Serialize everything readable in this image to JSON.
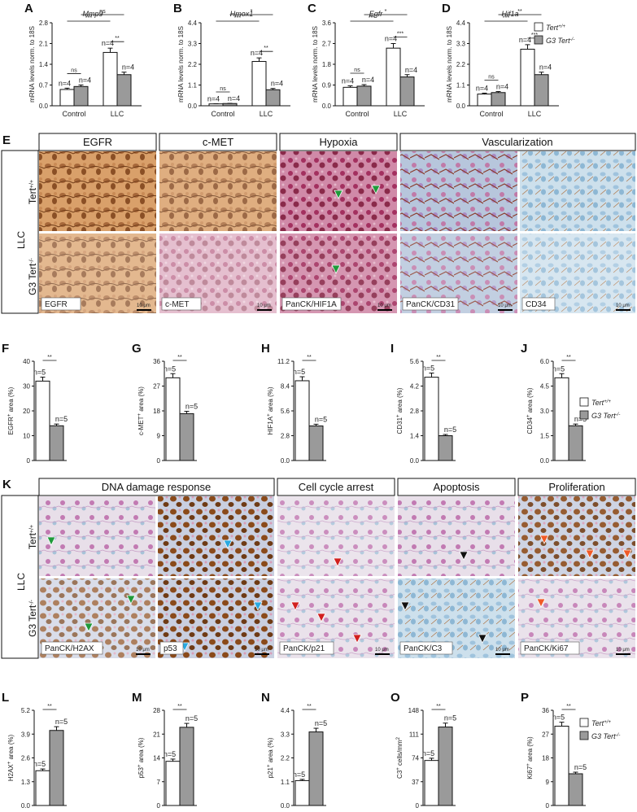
{
  "legend": {
    "wt": "Tert",
    "wt_sup": "+/+",
    "ko": "G3 Tert",
    "ko_sup": "-/-"
  },
  "colors": {
    "wt": "#ffffff",
    "ko": "#9a9a9a",
    "brown": "#9b5a2a",
    "pink": "#b0407a",
    "blue": "#9fbfd6"
  },
  "section_labels": {
    "E": "E",
    "K": "K"
  },
  "row_labels": {
    "llc": "LLC",
    "wt": "Tert",
    "wt_sup": "+/+",
    "ko": "G3 Tert",
    "ko_sup": "-/-"
  },
  "headers_E": [
    "EGFR",
    "c-MET",
    "Hypoxia",
    "Vascularization"
  ],
  "stains_E": [
    "EGFR",
    "c-MET",
    "PanCK/HIF1A",
    "PanCK/CD31",
    "CD34"
  ],
  "headers_K": [
    "DNA damage response",
    "Cell cycle arrest",
    "Apoptosis",
    "Proliferation"
  ],
  "stains_K": [
    "PanCK/H2AX",
    "p53",
    "PanCK/p21",
    "PanCK/C3",
    "PanCK/Ki67"
  ],
  "scalebar": "10 μm",
  "chart_data": [
    {
      "panel": "A",
      "type": "bar",
      "title": "Mmp9",
      "ylabel": "mRNA levels norm. to 18S",
      "categories": [
        "Control",
        "LLC"
      ],
      "ylim": [
        0,
        2.8
      ],
      "yticks": [
        0.0,
        0.7,
        1.4,
        2.1,
        2.8
      ],
      "series": [
        {
          "name": "Tert+/+",
          "values": [
            0.55,
            1.8
          ]
        },
        {
          "name": "G3 Tert-/-",
          "values": [
            0.65,
            1.05
          ]
        }
      ],
      "n_labels": [
        "n=4",
        "n=4",
        "n=4",
        "n=4"
      ],
      "sig": [
        {
          "label": "ns",
          "from": 0,
          "to": 1
        },
        {
          "label": "***",
          "from": 0,
          "to": 2
        },
        {
          "label": "ns",
          "from": 1,
          "to": 3
        },
        {
          "label": "**",
          "from": 2,
          "to": 3
        }
      ]
    },
    {
      "panel": "B",
      "type": "bar",
      "title": "Hmox1",
      "ylabel": "mRNA levels norm. to 18S",
      "categories": [
        "Control",
        "LLC"
      ],
      "ylim": [
        0,
        4.4
      ],
      "yticks": [
        0.0,
        1.1,
        2.2,
        3.3,
        4.4
      ],
      "series": [
        {
          "name": "Tert+/+",
          "values": [
            0.1,
            2.35
          ]
        },
        {
          "name": "G3 Tert-/-",
          "values": [
            0.12,
            0.85
          ]
        }
      ],
      "n_labels": [
        "n=4",
        "n=4",
        "n=4",
        "n=4"
      ],
      "sig": [
        {
          "label": "ns",
          "from": 0,
          "to": 1
        },
        {
          "label": "***",
          "from": 0,
          "to": 2
        },
        {
          "label": "*",
          "from": 1,
          "to": 3
        },
        {
          "label": "**",
          "from": 2,
          "to": 3
        }
      ]
    },
    {
      "panel": "C",
      "type": "bar",
      "title": "Egfr",
      "ylabel": "mRNA levels norm. to 18S",
      "categories": [
        "Control",
        "LLC"
      ],
      "ylim": [
        0,
        3.6
      ],
      "yticks": [
        0.0,
        0.9,
        1.8,
        2.7,
        3.6
      ],
      "series": [
        {
          "name": "Tert+/+",
          "values": [
            0.8,
            2.5
          ]
        },
        {
          "name": "G3 Tert-/-",
          "values": [
            0.85,
            1.25
          ]
        }
      ],
      "n_labels": [
        "n=4",
        "n=4",
        "n=4",
        "n=4"
      ],
      "sig": [
        {
          "label": "ns",
          "from": 0,
          "to": 1
        },
        {
          "label": "***",
          "from": 0,
          "to": 2
        },
        {
          "label": "*",
          "from": 1,
          "to": 3
        },
        {
          "label": "***",
          "from": 2,
          "to": 3
        }
      ]
    },
    {
      "panel": "D",
      "type": "bar",
      "title": "Hif1a",
      "ylabel": "mRNA levels norm. to 18S",
      "categories": [
        "Control",
        "LLC"
      ],
      "ylim": [
        0,
        4.4
      ],
      "yticks": [
        0.0,
        1.1,
        2.2,
        3.3,
        4.4
      ],
      "series": [
        {
          "name": "Tert+/+",
          "values": [
            0.62,
            3.0
          ]
        },
        {
          "name": "G3 Tert-/-",
          "values": [
            0.7,
            1.65
          ]
        }
      ],
      "n_labels": [
        "n=4",
        "n=4",
        "n=4",
        "n=4"
      ],
      "sig": [
        {
          "label": "ns",
          "from": 0,
          "to": 1
        },
        {
          "label": "***",
          "from": 0,
          "to": 2
        },
        {
          "label": "**",
          "from": 1,
          "to": 3
        },
        {
          "label": "***",
          "from": 2,
          "to": 3
        }
      ]
    },
    {
      "panel": "F",
      "type": "bar",
      "ylabel": "EGFR+ area (%)",
      "ylim": [
        0,
        40
      ],
      "yticks": [
        0,
        10,
        20,
        30,
        40
      ],
      "series": [
        {
          "name": "Tert+/+",
          "values": [
            32
          ]
        },
        {
          "name": "G3 Tert-/-",
          "values": [
            14
          ]
        }
      ],
      "n_labels": [
        "n=5",
        "n=5"
      ],
      "sig": "**"
    },
    {
      "panel": "G",
      "type": "bar",
      "ylabel": "c-MET+ area (%)",
      "ylim": [
        0,
        36
      ],
      "yticks": [
        0,
        9,
        18,
        27,
        36
      ],
      "series": [
        {
          "name": "Tert+/+",
          "values": [
            30
          ]
        },
        {
          "name": "G3 Tert-/-",
          "values": [
            17
          ]
        }
      ],
      "n_labels": [
        "n=5",
        "n=5"
      ],
      "sig": "**"
    },
    {
      "panel": "H",
      "type": "bar",
      "ylabel": "HIF1A+ area (%)",
      "ylim": [
        0,
        11.2
      ],
      "yticks": [
        0.0,
        2.8,
        5.6,
        8.4,
        11.2
      ],
      "series": [
        {
          "name": "Tert+/+",
          "values": [
            9.0
          ]
        },
        {
          "name": "G3 Tert-/-",
          "values": [
            3.9
          ]
        }
      ],
      "n_labels": [
        "n=5",
        "n=5"
      ],
      "sig": "**"
    },
    {
      "panel": "I",
      "type": "bar",
      "ylabel": "CD31+ area (%)",
      "ylim": [
        0,
        5.6
      ],
      "yticks": [
        0.0,
        1.4,
        2.8,
        4.2,
        5.6
      ],
      "series": [
        {
          "name": "Tert+/+",
          "values": [
            4.7
          ]
        },
        {
          "name": "G3 Tert-/-",
          "values": [
            1.4
          ]
        }
      ],
      "n_labels": [
        "n=5",
        "n=5"
      ],
      "sig": "**"
    },
    {
      "panel": "J",
      "type": "bar",
      "ylabel": "CD34+ area (%)",
      "ylim": [
        0,
        6.0
      ],
      "yticks": [
        0.0,
        1.5,
        3.0,
        4.5,
        6.0
      ],
      "series": [
        {
          "name": "Tert+/+",
          "values": [
            5.0
          ]
        },
        {
          "name": "G3 Tert-/-",
          "values": [
            2.1
          ]
        }
      ],
      "n_labels": [
        "n=5",
        "n=5"
      ],
      "sig": "**"
    },
    {
      "panel": "L",
      "type": "bar",
      "ylabel": "H2AX+ area (%)",
      "ylim": [
        0,
        5.2
      ],
      "yticks": [
        0.0,
        1.3,
        2.6,
        3.9,
        5.2
      ],
      "series": [
        {
          "name": "Tert+/+",
          "values": [
            1.9
          ]
        },
        {
          "name": "G3 Tert-/-",
          "values": [
            4.1
          ]
        }
      ],
      "n_labels": [
        "n=5",
        "n=5"
      ],
      "sig": "**"
    },
    {
      "panel": "M",
      "type": "bar",
      "ylabel": "p53+ area (%)",
      "ylim": [
        0,
        28
      ],
      "yticks": [
        0,
        7,
        14,
        21,
        28
      ],
      "series": [
        {
          "name": "Tert+/+",
          "values": [
            13
          ]
        },
        {
          "name": "G3 Tert-/-",
          "values": [
            23
          ]
        }
      ],
      "n_labels": [
        "n=5",
        "n=5"
      ],
      "sig": "**"
    },
    {
      "panel": "N",
      "type": "bar",
      "ylabel": "p21+ area (%)",
      "ylim": [
        0,
        4.4
      ],
      "yticks": [
        0.0,
        1.1,
        2.2,
        3.3,
        4.4
      ],
      "series": [
        {
          "name": "Tert+/+",
          "values": [
            1.15
          ]
        },
        {
          "name": "G3 Tert-/-",
          "values": [
            3.4
          ]
        }
      ],
      "n_labels": [
        "n=5",
        "n=5"
      ],
      "sig": "**"
    },
    {
      "panel": "O",
      "type": "bar",
      "ylabel": "C3+ cells/mm2",
      "ylim": [
        0,
        148
      ],
      "yticks": [
        0,
        37,
        74,
        111,
        148
      ],
      "series": [
        {
          "name": "Tert+/+",
          "values": [
            70
          ]
        },
        {
          "name": "G3 Tert-/-",
          "values": [
            122
          ]
        }
      ],
      "n_labels": [
        "n=5",
        "n=5"
      ],
      "sig": "**"
    },
    {
      "panel": "P",
      "type": "bar",
      "ylabel": "Ki67+ area (%)",
      "ylim": [
        0,
        36
      ],
      "yticks": [
        0,
        9,
        18,
        27,
        36
      ],
      "series": [
        {
          "name": "Tert+/+",
          "values": [
            30
          ]
        },
        {
          "name": "G3 Tert-/-",
          "values": [
            12
          ]
        }
      ],
      "n_labels": [
        "n=5",
        "n=5"
      ],
      "sig": "**"
    }
  ]
}
